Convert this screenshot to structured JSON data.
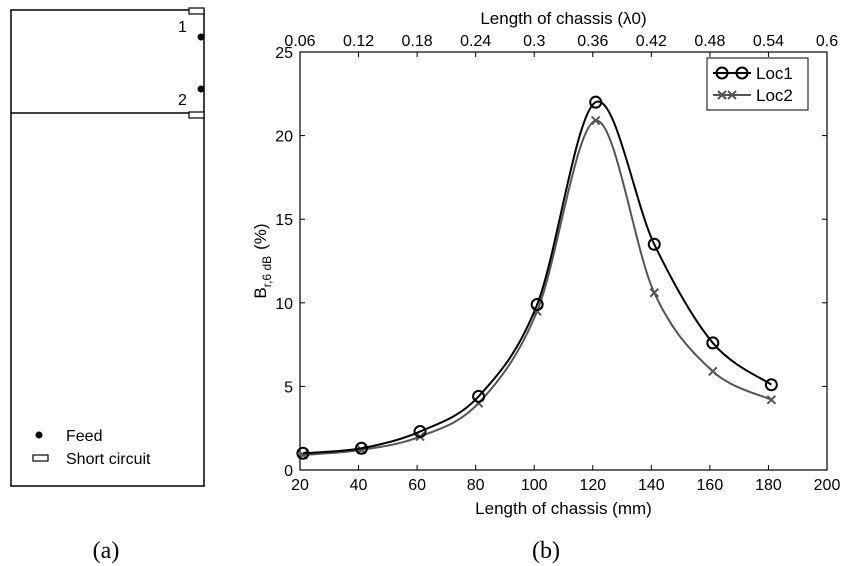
{
  "panel_a": {
    "port_labels": [
      "1",
      "2"
    ],
    "legend": {
      "feed": "Feed",
      "short_circuit": "Short circuit"
    },
    "caption": "(a)"
  },
  "panel_b": {
    "caption": "(b)"
  },
  "chart_data": {
    "type": "line",
    "xlabel": "Length of chassis (mm)",
    "x2label": "Length of chassis (λ0)",
    "ylabel": "B",
    "ylabel_sub": "r,6 dB",
    "ylabel_unit": "(%)",
    "xlim": [
      20,
      200
    ],
    "ylim": [
      0,
      25
    ],
    "x_ticks": [
      "20",
      "40",
      "60",
      "80",
      "100",
      "120",
      "140",
      "160",
      "180",
      "200"
    ],
    "y_ticks": [
      "0",
      "5",
      "10",
      "15",
      "20",
      "25"
    ],
    "x2_ticks": [
      "0.06",
      "0.12",
      "0.18",
      "0.24",
      "0.3",
      "0.36",
      "0.42",
      "0.48",
      "0.54",
      "0.6"
    ],
    "legend_position": "top-right",
    "series": [
      {
        "name": "Loc1",
        "marker": "circle",
        "color": "#000000",
        "x": [
          21,
          41,
          61,
          81,
          101,
          121,
          141,
          161,
          181
        ],
        "y": [
          1.0,
          1.3,
          2.3,
          4.4,
          9.9,
          22.0,
          13.5,
          7.6,
          5.1
        ]
      },
      {
        "name": "Loc2",
        "marker": "x",
        "color": "#555555",
        "x": [
          21,
          41,
          61,
          81,
          101,
          121,
          141,
          161,
          181
        ],
        "y": [
          0.9,
          1.2,
          2.0,
          4.0,
          9.5,
          20.9,
          10.6,
          5.9,
          4.2
        ]
      }
    ]
  }
}
